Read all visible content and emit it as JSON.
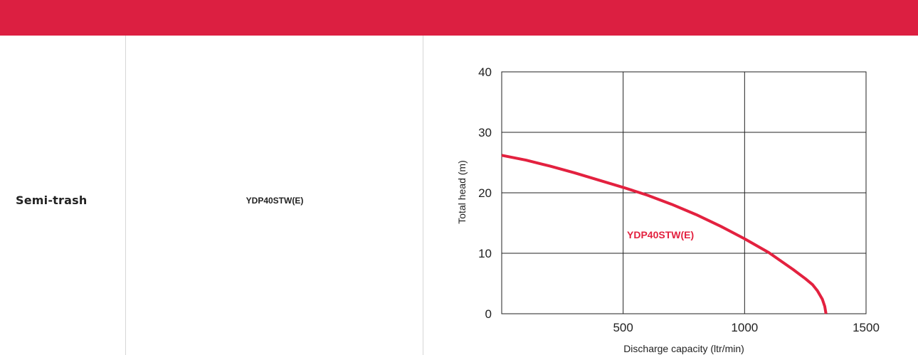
{
  "colors": {
    "header": "#dc1f41",
    "curve": "#e3213f",
    "grid": "#222222",
    "divider": "#d6d6d6"
  },
  "row": {
    "category": "Semi-trash",
    "model": "YDP40STW(E)"
  },
  "chart_data": {
    "type": "line",
    "xlabel": "Discharge capacity (ltr/min)",
    "ylabel": "Total head (m)",
    "xlim": [
      0,
      1500
    ],
    "ylim": [
      0,
      40
    ],
    "x_ticks": [
      "500",
      "1000",
      "1500"
    ],
    "y_ticks": [
      "0",
      "10",
      "20",
      "30",
      "40"
    ],
    "grid": true,
    "series": [
      {
        "name": "YDP40STW(E)",
        "x": [
          0,
          100,
          200,
          300,
          400,
          500,
          600,
          700,
          800,
          900,
          1000,
          1100,
          1200,
          1250,
          1280,
          1300,
          1320,
          1330,
          1335
        ],
        "y": [
          26.2,
          25.4,
          24.4,
          23.3,
          22.1,
          20.9,
          19.6,
          18.1,
          16.4,
          14.5,
          12.4,
          10.1,
          7.3,
          5.8,
          4.8,
          3.8,
          2.4,
          1.2,
          0
        ]
      }
    ]
  }
}
